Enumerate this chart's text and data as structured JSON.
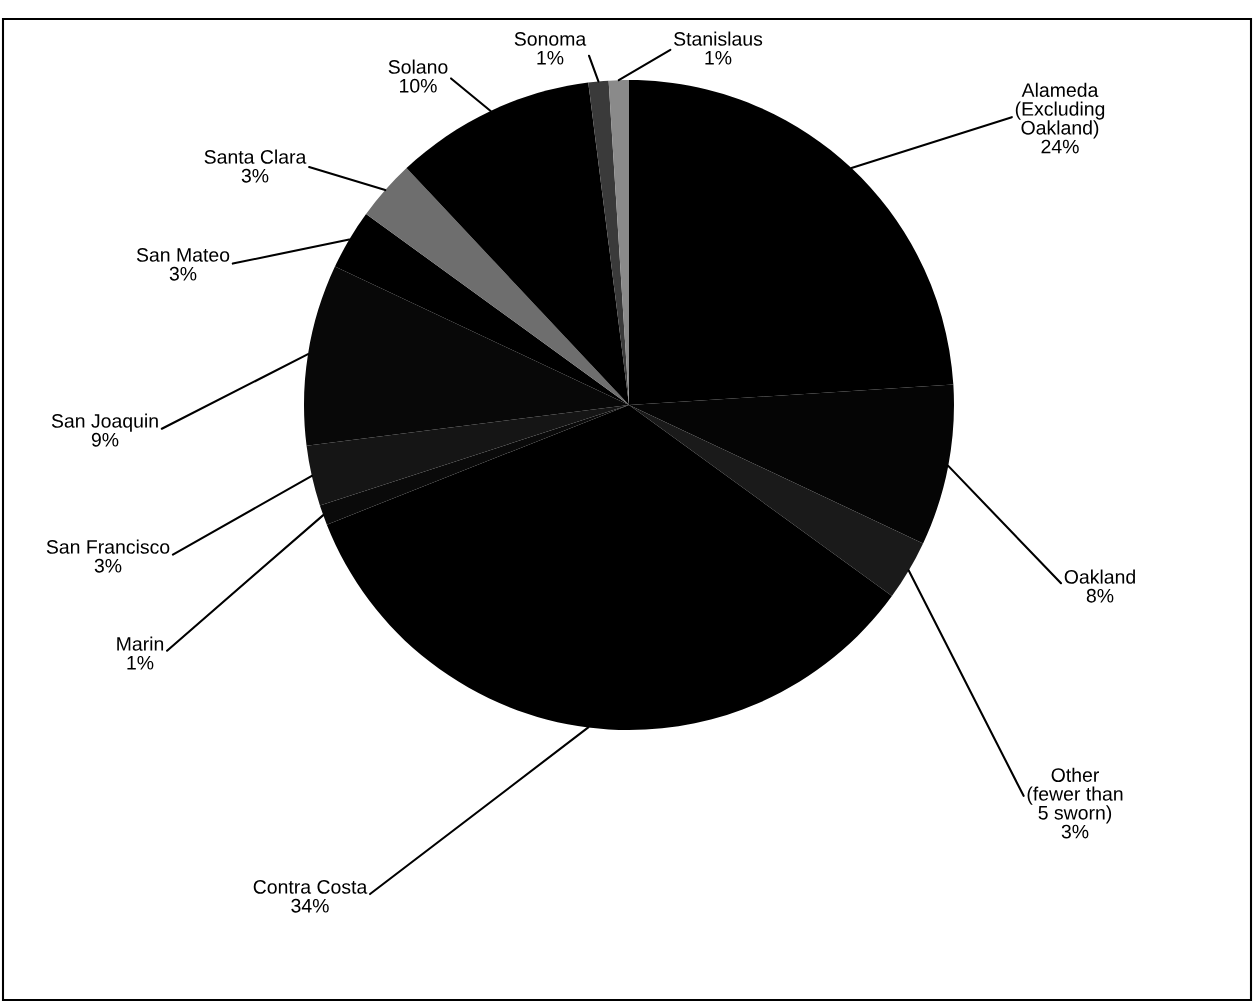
{
  "chart_data": {
    "type": "pie",
    "categories": [
      "Alameda\n(Excluding\nOakland)",
      "Oakland",
      "Other\n(fewer than\n5 sworn)",
      "Contra Costa",
      "Marin",
      "San Francisco",
      "San Joaquin",
      "San Mateo",
      "Santa Clara",
      "Solano",
      "Sonoma",
      "Stanislaus"
    ],
    "values": [
      24,
      8,
      3,
      34,
      1,
      3,
      9,
      3,
      3,
      10,
      1,
      1
    ],
    "value_labels": [
      "24%",
      "8%",
      "3%",
      "34%",
      "1%",
      "3%",
      "9%",
      "3%",
      "3%",
      "10%",
      "1%",
      "1%"
    ],
    "colors": [
      "#000000",
      "#050505",
      "#1a1a1a",
      "#000000",
      "#0a0a0a",
      "#151515",
      "#080808",
      "#000000",
      "#6e6e6e",
      "#000000",
      "#3a3a3a",
      "#8a8a8a"
    ],
    "legend": false
  }
}
